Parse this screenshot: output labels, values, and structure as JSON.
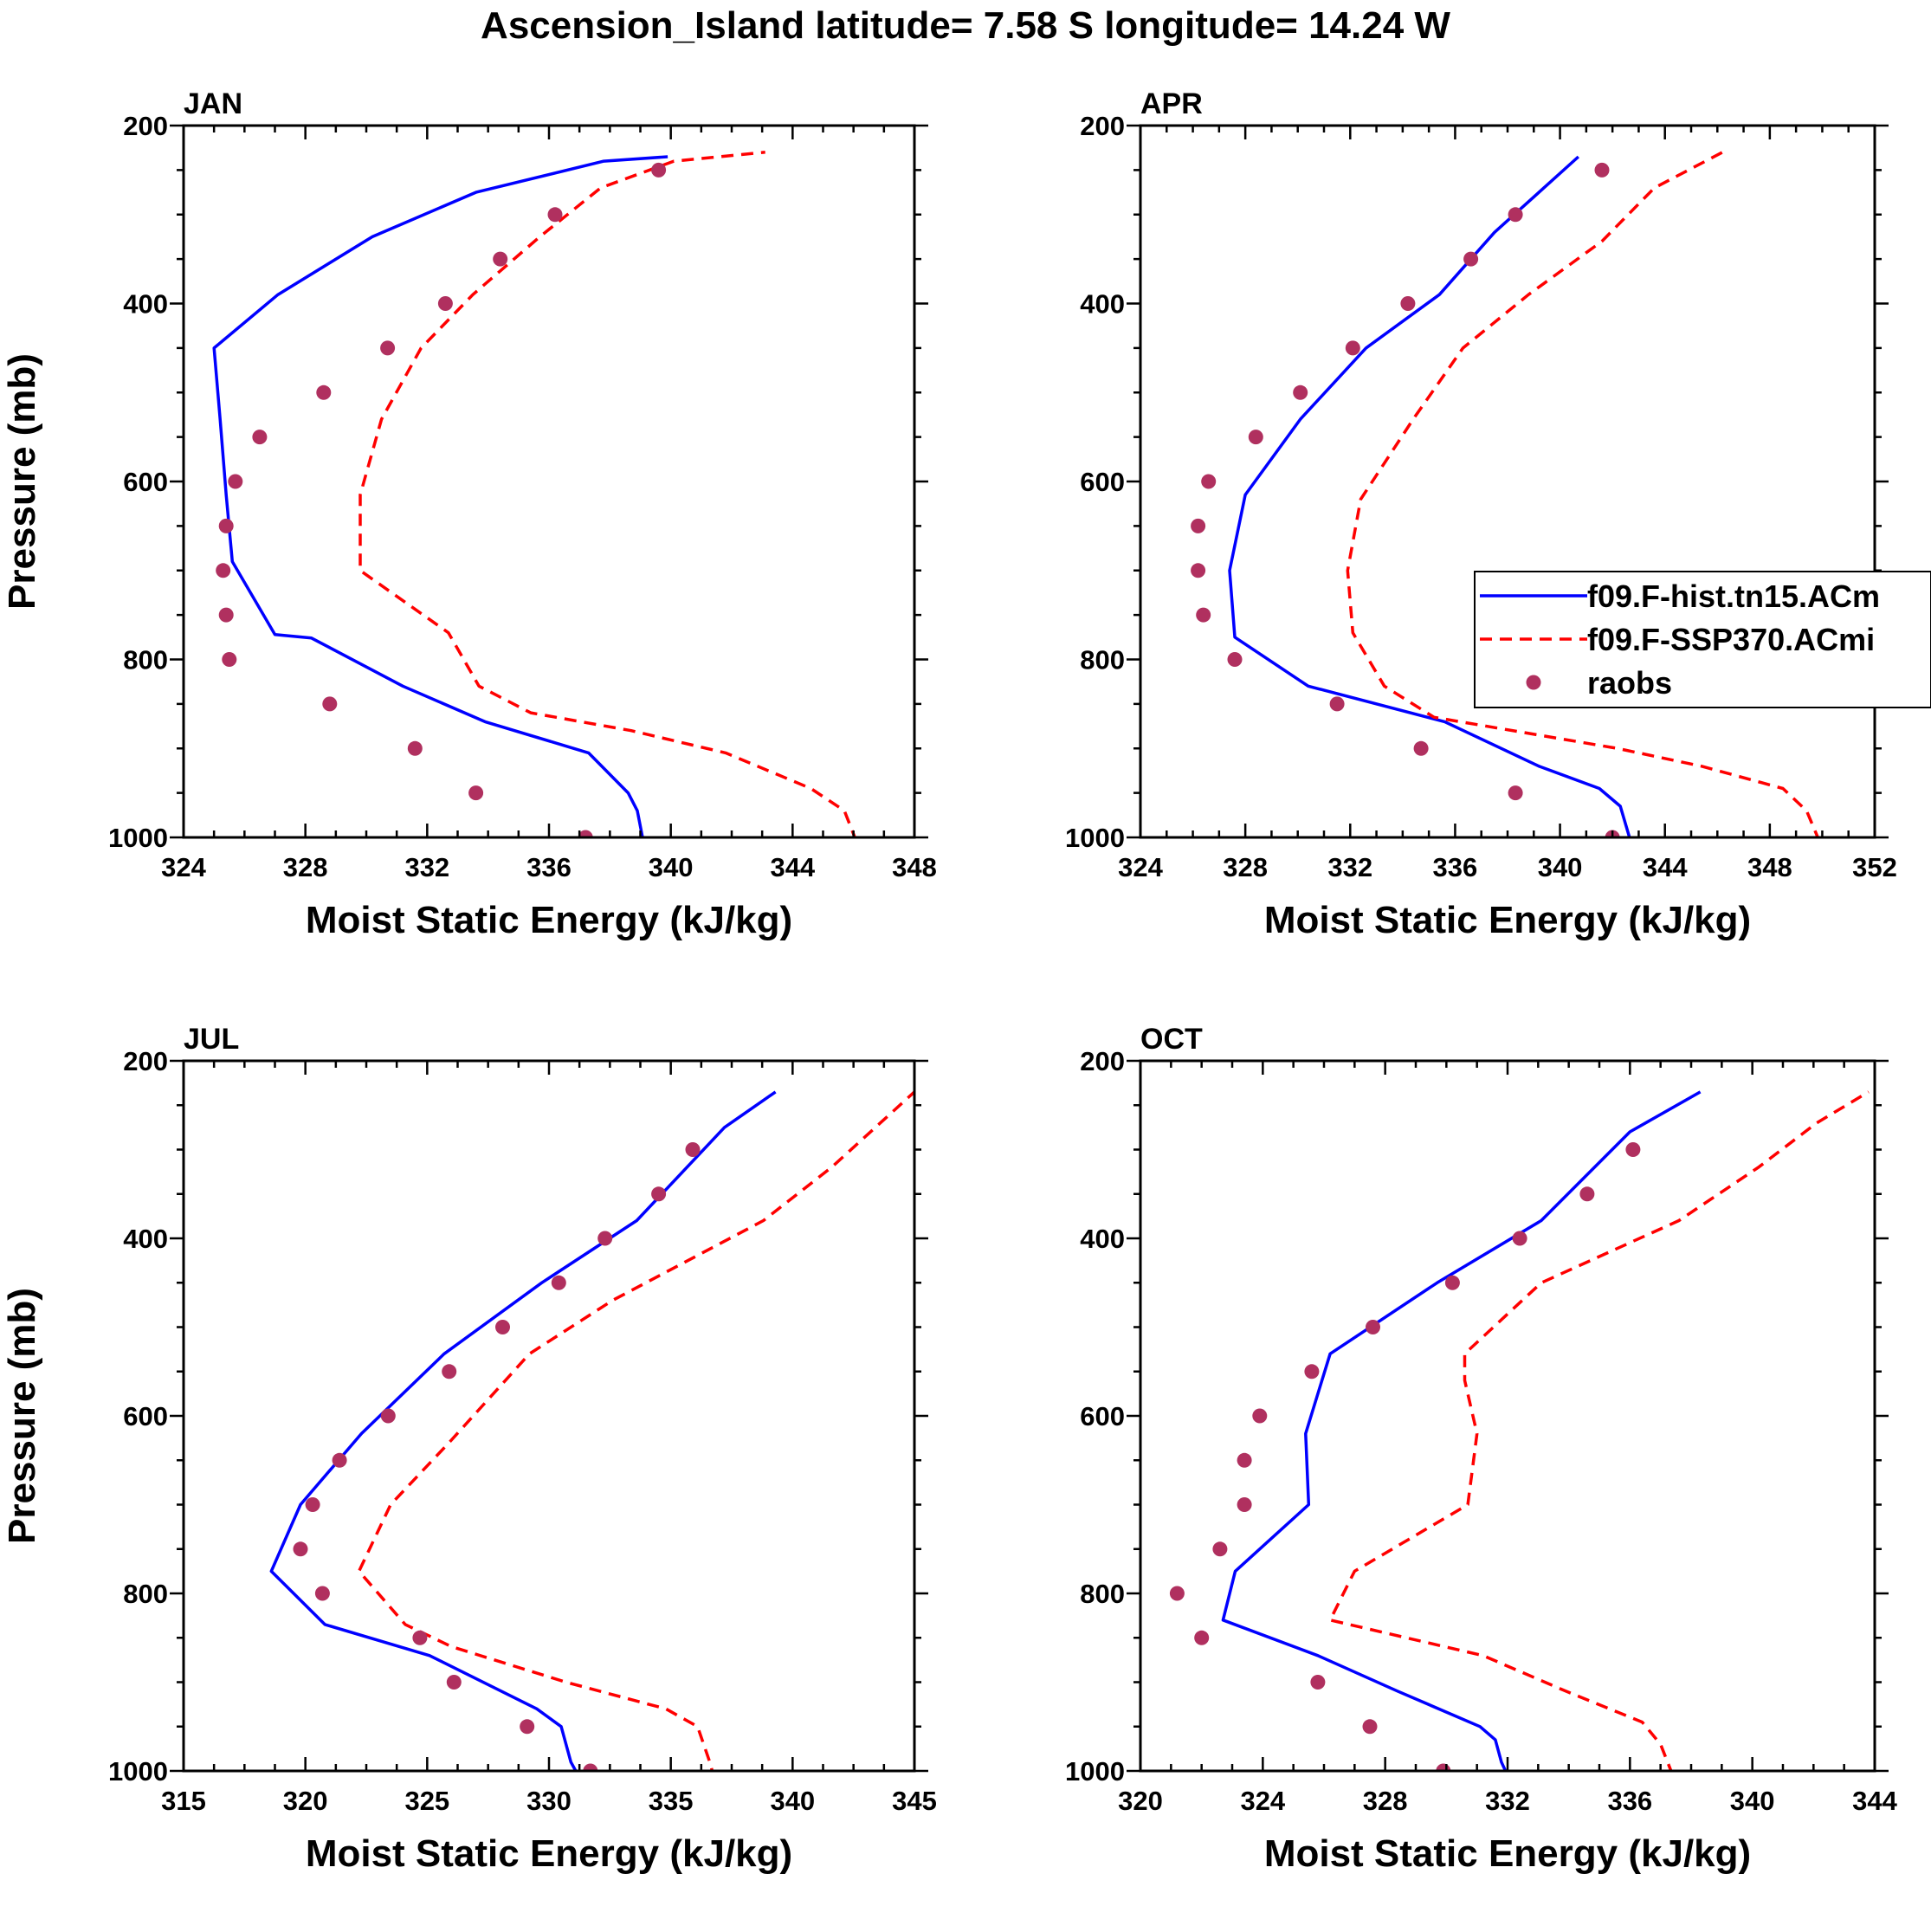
{
  "figure": {
    "title": "Ascension_Island  latitude= 7.58 S longitude= 14.24 W"
  },
  "legend": {
    "panel": "APR",
    "entries": [
      {
        "name": "f09.F-hist.tn15.ACm",
        "style": "solid",
        "color": "#0000ff"
      },
      {
        "name": "f09.F-SSP370.ACmi",
        "style": "dashed",
        "color": "#ff0000"
      },
      {
        "name": "raobs",
        "style": "marker",
        "color": "#b0305f"
      }
    ]
  },
  "colors": {
    "hist": "#0000ff",
    "ssp": "#ff0000",
    "raobs": "#b0305f",
    "axis": "#000000"
  },
  "chart_data": [
    {
      "id": "JAN",
      "type": "line",
      "title": "JAN",
      "xlabel": "Moist Static Energy (kJ/kg)",
      "ylabel": "Pressure (mb)",
      "xlim": [
        324,
        348
      ],
      "xticks": [
        324,
        328,
        332,
        336,
        340,
        344,
        348
      ],
      "ylim": [
        1000,
        200
      ],
      "yticks": [
        200,
        400,
        600,
        800,
        1000
      ],
      "series": [
        {
          "name": "f09.F-hist.tn15.ACm",
          "key": "hist",
          "x": [
            339.1,
            338.9,
            338.6,
            337.3,
            333.9,
            331.2,
            328.2,
            327.0,
            325.6,
            325.4,
            325.2,
            325.0,
            327.1,
            330.2,
            333.6,
            337.8,
            339.9
          ],
          "y": [
            1005,
            970,
            950,
            905,
            870,
            830,
            776,
            772,
            690,
            615,
            530,
            450,
            390,
            325,
            275,
            240,
            235
          ]
        },
        {
          "name": "f09.F-SSP370.ACmi",
          "key": "ssp",
          "x": [
            346.1,
            345.7,
            344.6,
            341.8,
            338.7,
            335.4,
            333.7,
            332.7,
            329.8,
            329.8,
            330.5,
            331.8,
            333.5,
            335.7,
            337.7,
            340.1,
            343.1
          ],
          "y": [
            1005,
            970,
            945,
            905,
            880,
            860,
            830,
            770,
            700,
            615,
            530,
            450,
            390,
            325,
            270,
            240,
            230
          ]
        },
        {
          "name": "raobs",
          "key": "raobs",
          "marker": true,
          "x": [
            337.2,
            333.6,
            331.6,
            328.8,
            325.5,
            325.4,
            325.3,
            325.4,
            325.7,
            326.5,
            328.6,
            330.7,
            332.6,
            334.4,
            336.2,
            339.6
          ],
          "y": [
            1000,
            950,
            900,
            850,
            800,
            750,
            700,
            650,
            600,
            550,
            500,
            450,
            400,
            350,
            300,
            250
          ]
        }
      ]
    },
    {
      "id": "APR",
      "type": "line",
      "title": "APR",
      "xlabel": "Moist Static Energy (kJ/kg)",
      "ylabel": "",
      "xlim": [
        324,
        352
      ],
      "xticks": [
        324,
        328,
        332,
        336,
        340,
        344,
        348,
        352
      ],
      "ylim": [
        1000,
        200
      ],
      "yticks": [
        200,
        400,
        600,
        800,
        1000
      ],
      "series": [
        {
          "name": "f09.F-hist.tn15.ACm",
          "key": "hist",
          "x": [
            342.7,
            342.3,
            341.5,
            339.2,
            335.6,
            330.4,
            327.6,
            327.4,
            328.0,
            330.1,
            332.6,
            335.4,
            337.5,
            340.7
          ],
          "y": [
            1005,
            965,
            945,
            920,
            870,
            830,
            775,
            700,
            615,
            530,
            450,
            390,
            320,
            235
          ]
        },
        {
          "name": "f09.F-SSP370.ACmi",
          "key": "ssp",
          "x": [
            349.9,
            349.4,
            348.5,
            345.4,
            342.2,
            335.2,
            333.3,
            332.1,
            331.9,
            332.4,
            334.4,
            336.3,
            338.8,
            341.6,
            343.6,
            346.2
          ],
          "y": [
            1005,
            970,
            945,
            920,
            900,
            865,
            830,
            770,
            700,
            620,
            530,
            450,
            390,
            330,
            270,
            230
          ]
        },
        {
          "name": "raobs",
          "key": "raobs",
          "marker": true,
          "x": [
            342.0,
            338.3,
            334.7,
            331.5,
            327.6,
            326.4,
            326.2,
            326.2,
            326.6,
            328.4,
            330.1,
            332.1,
            334.2,
            336.6,
            338.3,
            341.6
          ],
          "y": [
            1000,
            950,
            900,
            850,
            800,
            750,
            700,
            650,
            600,
            550,
            500,
            450,
            400,
            350,
            300,
            250
          ]
        }
      ]
    },
    {
      "id": "JUL",
      "type": "line",
      "title": "JUL",
      "xlabel": "Moist Static Energy (kJ/kg)",
      "ylabel": "Pressure (mb)",
      "xlim": [
        315,
        345
      ],
      "xticks": [
        315,
        320,
        325,
        330,
        335,
        340,
        345
      ],
      "ylim": [
        1000,
        200
      ],
      "yticks": [
        200,
        400,
        600,
        800,
        1000
      ],
      "series": [
        {
          "name": "f09.F-hist.tn15.ACm",
          "key": "hist",
          "x": [
            331.3,
            330.9,
            330.5,
            329.5,
            325.1,
            320.8,
            318.6,
            319.8,
            322.3,
            325.7,
            329.7,
            333.6,
            337.2,
            339.3
          ],
          "y": [
            1010,
            990,
            950,
            930,
            870,
            835,
            775,
            700,
            620,
            530,
            450,
            380,
            275,
            235
          ]
        },
        {
          "name": "f09.F-SSP370.ACmi",
          "key": "ssp",
          "x": [
            336.8,
            336.6,
            336.1,
            334.8,
            330.7,
            326.0,
            324.1,
            322.2,
            323.5,
            325.9,
            329.2,
            332.6,
            338.8,
            341.6,
            345.2
          ],
          "y": [
            1010,
            990,
            950,
            930,
            900,
            860,
            835,
            775,
            700,
            630,
            530,
            470,
            380,
            320,
            230
          ]
        },
        {
          "name": "raobs",
          "key": "raobs",
          "marker": true,
          "x": [
            331.7,
            329.1,
            326.1,
            324.7,
            320.7,
            319.8,
            320.3,
            321.4,
            323.4,
            325.9,
            328.1,
            330.4,
            332.3,
            334.5,
            335.9
          ],
          "y": [
            1000,
            950,
            900,
            850,
            800,
            750,
            700,
            650,
            600,
            550,
            500,
            450,
            400,
            350,
            300
          ]
        }
      ]
    },
    {
      "id": "OCT",
      "type": "line",
      "title": "OCT",
      "xlabel": "Moist Static Energy (kJ/kg)",
      "ylabel": "",
      "xlim": [
        320,
        344
      ],
      "xticks": [
        320,
        324,
        328,
        332,
        336,
        340,
        344
      ],
      "ylim": [
        1000,
        200
      ],
      "yticks": [
        200,
        400,
        600,
        800,
        1000
      ],
      "series": [
        {
          "name": "f09.F-hist.tn15.ACm",
          "key": "hist",
          "x": [
            332.0,
            331.8,
            331.6,
            331.1,
            328.4,
            325.8,
            322.7,
            323.1,
            325.5,
            325.4,
            326.2,
            329.7,
            333.1,
            336.0,
            338.3
          ],
          "y": [
            1005,
            990,
            965,
            950,
            910,
            870,
            830,
            775,
            700,
            620,
            530,
            450,
            380,
            280,
            235
          ]
        },
        {
          "name": "f09.F-SSP370.ACmi",
          "key": "ssp",
          "x": [
            337.4,
            337.0,
            336.4,
            333.9,
            331.2,
            326.2,
            327.0,
            330.7,
            331.0,
            330.6,
            330.6,
            333.1,
            337.6,
            340.2,
            342.1,
            343.8
          ],
          "y": [
            1005,
            970,
            945,
            910,
            870,
            830,
            775,
            700,
            620,
            560,
            530,
            450,
            380,
            320,
            270,
            235
          ]
        },
        {
          "name": "raobs",
          "key": "raobs",
          "marker": true,
          "x": [
            329.9,
            327.5,
            325.8,
            322.0,
            321.2,
            322.6,
            323.4,
            323.4,
            323.9,
            325.6,
            327.6,
            330.2,
            332.4,
            334.6,
            336.1
          ],
          "y": [
            1000,
            950,
            900,
            850,
            800,
            750,
            700,
            650,
            600,
            550,
            500,
            450,
            400,
            350,
            300
          ]
        }
      ]
    }
  ]
}
